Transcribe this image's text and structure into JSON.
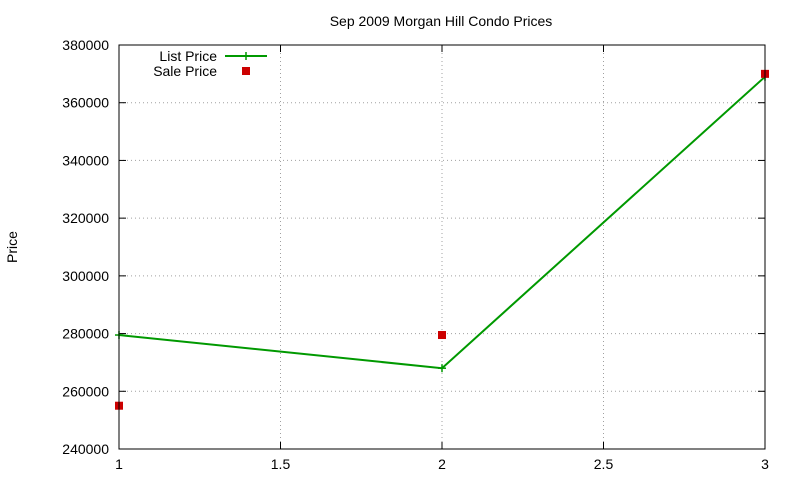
{
  "chart_data": {
    "type": "line",
    "title": "Sep 2009 Morgan Hill Condo Prices",
    "xlabel": "",
    "ylabel": "Price",
    "xlim": [
      1,
      3
    ],
    "ylim": [
      240000,
      380000
    ],
    "x_ticks": [
      1,
      1.5,
      2,
      2.5,
      3
    ],
    "x_tick_labels": [
      "1",
      "1.5",
      "2",
      "2.5",
      "3"
    ],
    "y_ticks": [
      240000,
      260000,
      280000,
      300000,
      320000,
      340000,
      360000,
      380000
    ],
    "y_tick_labels": [
      "240000",
      "260000",
      "280000",
      "300000",
      "320000",
      "340000",
      "360000",
      "380000"
    ],
    "grid": true,
    "legend_position": "top-left",
    "series": [
      {
        "name": "List Price",
        "style": "linespoints",
        "marker": "plus",
        "color": "#009900",
        "x": [
          1,
          2,
          3
        ],
        "y": [
          279500,
          268000,
          369000
        ]
      },
      {
        "name": "Sale Price",
        "style": "points",
        "marker": "square",
        "color": "#cc0000",
        "x": [
          1,
          2,
          3
        ],
        "y": [
          255000,
          279500,
          370000
        ]
      }
    ]
  }
}
